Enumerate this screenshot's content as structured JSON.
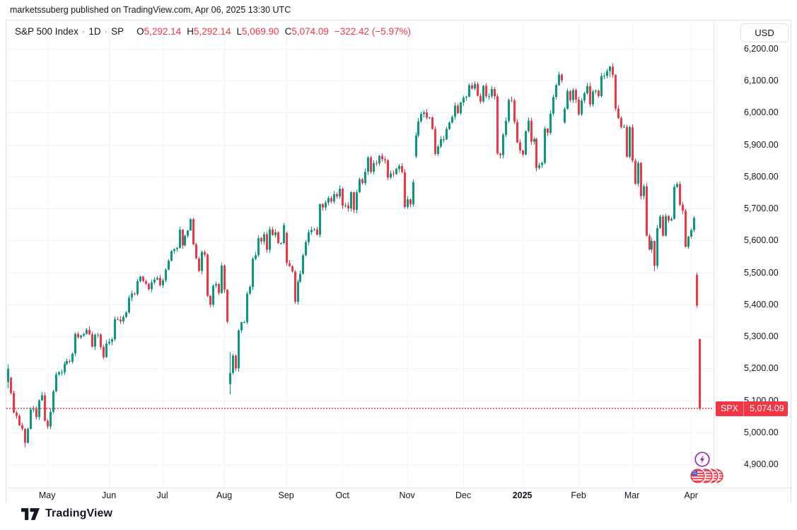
{
  "attribution": "marketssuberg published on TradingView.com, Apr 06, 2025 13:30 UTC",
  "currency_button": "USD",
  "legend": {
    "title": "S&P 500 Index",
    "sep": "·",
    "interval": "1D",
    "exchange": "SP",
    "ohlc": [
      {
        "label": "O",
        "value": "5,292.14"
      },
      {
        "label": "H",
        "value": "5,292.14"
      },
      {
        "label": "L",
        "value": "5,069.90"
      },
      {
        "label": "C",
        "value": "5,074.09"
      }
    ],
    "change": "−322.42 (−5.97%)"
  },
  "price_label": {
    "symbol": "SPX",
    "value": "5,074.09",
    "price": 5074.09
  },
  "footer_logo": "TradingView",
  "colors": {
    "up": "#089981",
    "down": "#f23645",
    "grid": "#f0f3fa",
    "border": "#e0e3eb",
    "text": "#131722",
    "badge": "#f23645",
    "dotted_line": "#f23645",
    "event_purple": "#9c27b0",
    "flag_red": "#f23645",
    "flag_blue": "#3b5bdb"
  },
  "icons": {
    "lightning": "lightning-event-icon",
    "flags": "us-flag-event-icons"
  },
  "chart_data": {
    "type": "candlestick",
    "title": "S&P 500 Index",
    "interval": "1D",
    "exchange": "SP",
    "last_bar": {
      "open": 5292.14,
      "high": 5292.14,
      "low": 5069.9,
      "close": 5074.09,
      "change": -322.42,
      "change_pct": -5.97
    },
    "last_close_line": 5074.09,
    "y_axis": {
      "min": 4900,
      "max": 6200,
      "step": 100,
      "prices": [
        6200,
        6100,
        6000,
        5900,
        5800,
        5700,
        5600,
        5500,
        5400,
        5300,
        5200,
        5100,
        5000,
        4900
      ],
      "labels": [
        "6,200.00",
        "6,100.00",
        "6,000.00",
        "5,900.00",
        "5,800.00",
        "5,700.00",
        "5,600.00",
        "5,500.00",
        "5,400.00",
        "5,300.00",
        "5,200.00",
        "5,100.00",
        "5,000.00",
        "4,900.00"
      ]
    },
    "x_axis": {
      "labels": [
        {
          "text": "May",
          "index": 14
        },
        {
          "text": "Jun",
          "index": 36
        },
        {
          "text": "Jul",
          "index": 55
        },
        {
          "text": "Aug",
          "index": 77
        },
        {
          "text": "Sep",
          "index": 99
        },
        {
          "text": "Oct",
          "index": 119
        },
        {
          "text": "Nov",
          "index": 142
        },
        {
          "text": "Dec",
          "index": 162
        },
        {
          "text": "2025",
          "index": 183,
          "bold": true
        },
        {
          "text": "Feb",
          "index": 203
        },
        {
          "text": "Mar",
          "index": 222
        },
        {
          "text": "Apr",
          "index": 243
        }
      ]
    },
    "closes": [
      5199,
      5123,
      5062,
      5051,
      5022,
      5011,
      4967,
      5011,
      5071,
      5072,
      5048,
      5100,
      5116,
      5036,
      5018,
      5064,
      5128,
      5181,
      5187,
      5188,
      5214,
      5223,
      5221,
      5246,
      5308,
      5297,
      5303,
      5308,
      5321,
      5307,
      5268,
      5305,
      5306,
      5267,
      5235,
      5278,
      5283,
      5291,
      5354,
      5353,
      5347,
      5361,
      5375,
      5421,
      5434,
      5432,
      5473,
      5487,
      5473,
      5465,
      5448,
      5469,
      5478,
      5483,
      5460,
      5475,
      5509,
      5537,
      5567,
      5573,
      5577,
      5634,
      5585,
      5615,
      5631,
      5667,
      5588,
      5544,
      5505,
      5564,
      5556,
      5427,
      5399,
      5459,
      5464,
      5436,
      5522,
      5446,
      5346,
      5186,
      5240,
      5200,
      5319,
      5344,
      5344,
      5434,
      5455,
      5543,
      5554,
      5608,
      5597,
      5620,
      5571,
      5635,
      5617,
      5626,
      5592,
      5592,
      5648,
      5529,
      5520,
      5503,
      5408,
      5471,
      5496,
      5554,
      5595,
      5626,
      5633,
      5635,
      5618,
      5714,
      5703,
      5719,
      5733,
      5722,
      5745,
      5738,
      5762,
      5709,
      5710,
      5700,
      5751,
      5696,
      5751,
      5792,
      5780,
      5815,
      5860,
      5815,
      5842,
      5841,
      5865,
      5854,
      5851,
      5797,
      5810,
      5808,
      5824,
      5833,
      5814,
      5705,
      5729,
      5713,
      5783,
      5929,
      5973,
      5996,
      6001,
      5984,
      5985,
      5949,
      5871,
      5894,
      5917,
      5917,
      5949,
      5969,
      5987,
      6022,
      5998,
      6032,
      6047,
      6050,
      6086,
      6075,
      6090,
      6053,
      6035,
      6084,
      6051,
      6051,
      6074,
      6051,
      5872,
      5867,
      5931,
      5974,
      6040,
      6038,
      5971,
      5907,
      5882,
      5869,
      5942,
      5975,
      5909,
      5918,
      5827,
      5836,
      5843,
      5950,
      5937,
      5997,
      6049,
      6086,
      6119,
      6101,
      6012,
      6068,
      6039,
      6071,
      6041,
      5995,
      6038,
      6061,
      6083,
      6026,
      6066,
      6069,
      6052,
      6115,
      6115,
      6130,
      6144,
      6118,
      6013,
      5983,
      5955,
      5956,
      5862,
      5955,
      5850,
      5778,
      5843,
      5739,
      5770,
      5615,
      5572,
      5599,
      5521,
      5639,
      5675,
      5615,
      5676,
      5663,
      5668,
      5768,
      5777,
      5712,
      5693,
      5581,
      5612,
      5633,
      5671,
      5396.52,
      5074.09
    ],
    "opens_override": {
      "0": 5157,
      "1": 5171,
      "79": 5151,
      "99": 5624,
      "145": 5864,
      "198": 5969,
      "245": 5492,
      "246": 5292.14
    },
    "wick_override": {
      "0": [
        5213,
        5138
      ],
      "6": [
        5013,
        4953
      ],
      "65": [
        5670,
        5655
      ],
      "79": [
        5251,
        5119
      ],
      "214": [
        6147,
        6111
      ],
      "230": [
        5560,
        5504
      ],
      "245": [
        5499,
        5390
      ],
      "246": [
        5292.14,
        5069.9
      ]
    }
  }
}
